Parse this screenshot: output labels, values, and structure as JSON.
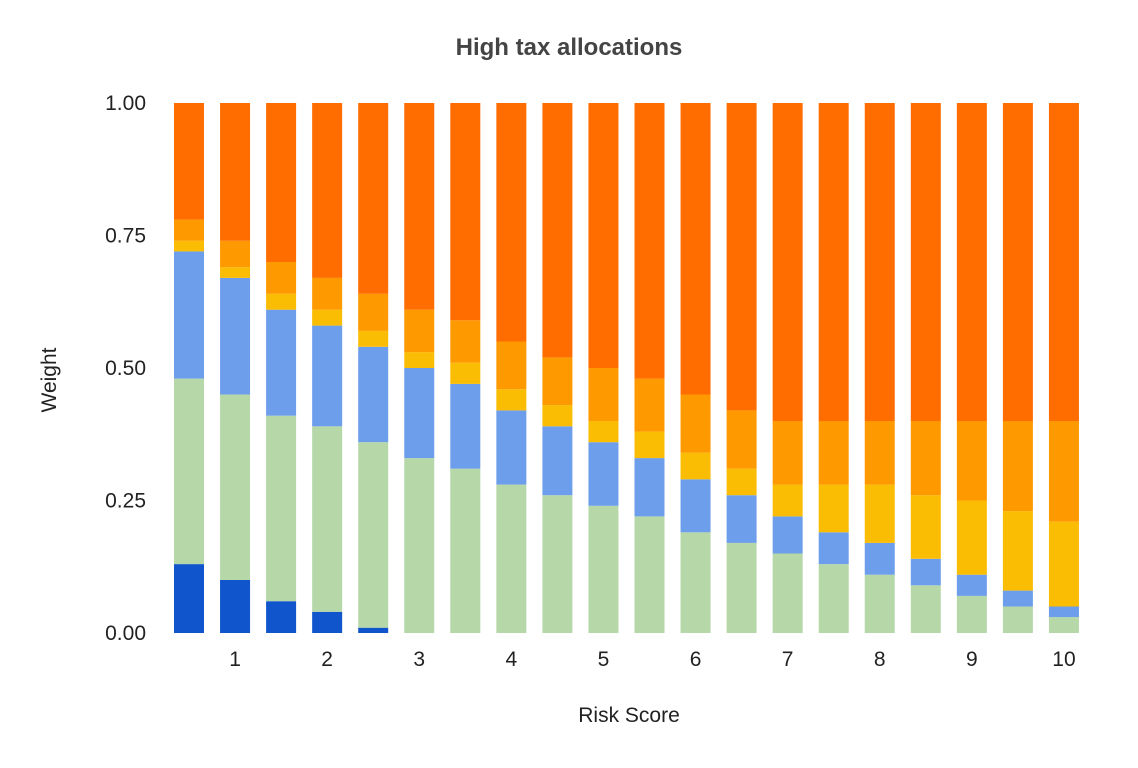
{
  "chart_data": {
    "type": "bar",
    "stacked": true,
    "title": "High tax allocations",
    "xlabel": "Risk Score",
    "ylabel": "Weight",
    "ylim": [
      0,
      1
    ],
    "yticks": [
      "0.00",
      "0.25",
      "0.50",
      "0.75",
      "1.00"
    ],
    "x": [
      0.5,
      1,
      1.5,
      2,
      2.5,
      3,
      3.5,
      4,
      4.5,
      5,
      5.5,
      6,
      6.5,
      7,
      7.5,
      8,
      8.5,
      9,
      9.5,
      10
    ],
    "xtick_labels": [
      {
        "x": 1,
        "label": "1"
      },
      {
        "x": 2,
        "label": "2"
      },
      {
        "x": 3,
        "label": "3"
      },
      {
        "x": 4,
        "label": "4"
      },
      {
        "x": 5,
        "label": "5"
      },
      {
        "x": 6,
        "label": "6"
      },
      {
        "x": 7,
        "label": "7"
      },
      {
        "x": 8,
        "label": "8"
      },
      {
        "x": 9,
        "label": "9"
      },
      {
        "x": 10,
        "label": "10"
      }
    ],
    "grid": false,
    "legend": "none",
    "series": [
      {
        "color": "#1155cc",
        "values": [
          0.13,
          0.1,
          0.06,
          0.04,
          0.01,
          0,
          0,
          0,
          0,
          0,
          0,
          0,
          0,
          0,
          0,
          0,
          0,
          0,
          0,
          0
        ]
      },
      {
        "color": "#b6d7a8",
        "values": [
          0.35,
          0.35,
          0.35,
          0.35,
          0.35,
          0.33,
          0.31,
          0.28,
          0.26,
          0.24,
          0.22,
          0.19,
          0.17,
          0.15,
          0.13,
          0.11,
          0.09,
          0.07,
          0.05,
          0.03
        ]
      },
      {
        "color": "#6d9eeb",
        "values": [
          0.24,
          0.22,
          0.2,
          0.19,
          0.18,
          0.17,
          0.16,
          0.14,
          0.13,
          0.12,
          0.11,
          0.1,
          0.09,
          0.07,
          0.06,
          0.06,
          0.05,
          0.04,
          0.03,
          0.02
        ]
      },
      {
        "color": "#fbbc04",
        "values": [
          0.02,
          0.02,
          0.03,
          0.03,
          0.03,
          0.03,
          0.04,
          0.04,
          0.04,
          0.04,
          0.05,
          0.05,
          0.05,
          0.06,
          0.09,
          0.11,
          0.12,
          0.14,
          0.15,
          0.16
        ]
      },
      {
        "color": "#ff9900",
        "values": [
          0.04,
          0.05,
          0.06,
          0.06,
          0.07,
          0.08,
          0.08,
          0.09,
          0.09,
          0.1,
          0.1,
          0.11,
          0.11,
          0.12,
          0.12,
          0.12,
          0.14,
          0.15,
          0.17,
          0.19
        ]
      },
      {
        "color": "#ff6d01",
        "values": [
          0.22,
          0.26,
          0.3,
          0.33,
          0.36,
          0.39,
          0.41,
          0.45,
          0.48,
          0.5,
          0.52,
          0.55,
          0.58,
          0.6,
          0.6,
          0.6,
          0.6,
          0.6,
          0.6,
          0.6
        ]
      }
    ]
  }
}
